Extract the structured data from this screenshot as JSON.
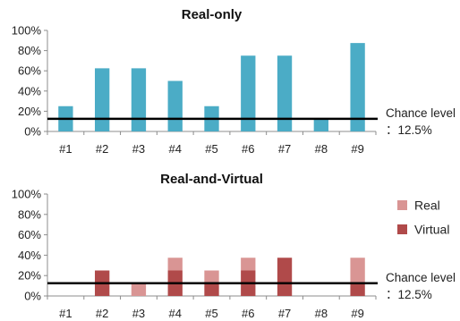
{
  "chart_data": [
    {
      "type": "bar",
      "title": "Real-only",
      "categories": [
        "#1",
        "#2",
        "#3",
        "#4",
        "#5",
        "#6",
        "#7",
        "#8",
        "#9"
      ],
      "yticks": [
        "0%",
        "20%",
        "40%",
        "60%",
        "80%",
        "100%"
      ],
      "ylim": [
        0,
        100
      ],
      "series": [
        {
          "values": [
            25,
            62.5,
            62.5,
            50,
            25,
            75,
            75,
            12.5,
            87.5
          ],
          "color": "#4bacc6"
        }
      ],
      "reference_line": {
        "value": 12.5,
        "label": [
          "Chance level",
          "：12.5%"
        ]
      },
      "grid": false
    },
    {
      "type": "bar",
      "stacked": true,
      "title": "Real-and-Virtual",
      "categories": [
        "#1",
        "#2",
        "#3",
        "#4",
        "#5",
        "#6",
        "#7",
        "#8",
        "#9"
      ],
      "yticks": [
        "0%",
        "20%",
        "40%",
        "60%",
        "80%",
        "100%"
      ],
      "ylim": [
        0,
        100
      ],
      "series": [
        {
          "name": "Virtual",
          "values": [
            0,
            25,
            0,
            25,
            12.5,
            25,
            37.5,
            0,
            12.5
          ],
          "color": "#b04a4a"
        },
        {
          "name": "Real",
          "values": [
            0,
            0,
            12.5,
            12.5,
            12.5,
            12.5,
            0,
            0,
            25
          ],
          "color": "#d99594"
        }
      ],
      "legend": {
        "position": "right",
        "order": [
          "Real",
          "Virtual"
        ]
      },
      "reference_line": {
        "value": 12.5,
        "label": [
          "Chance level",
          "：12.5%"
        ]
      },
      "grid": false
    }
  ]
}
